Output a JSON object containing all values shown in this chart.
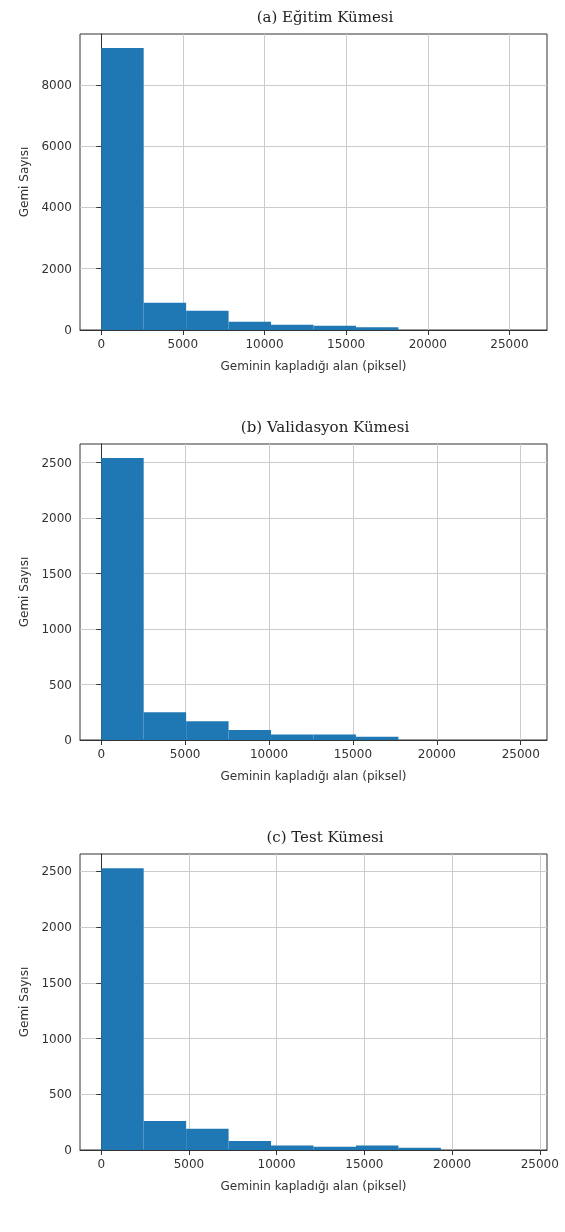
{
  "chart_data": [
    {
      "type": "histogram",
      "title": "(a) Eğitim Kümesi",
      "xlabel": "Geminin kapladığı alan (piksel)",
      "ylabel": "Gemi Sayısı",
      "color": "#1f77b4",
      "bins": [
        0,
        2600,
        5200,
        7800,
        10400,
        13000,
        15600,
        18200,
        20800,
        23400,
        26000
      ],
      "values": [
        9200,
        890,
        630,
        270,
        170,
        140,
        90,
        0,
        0,
        0
      ],
      "xlim": [
        -1300,
        27300
      ],
      "ylim": [
        0,
        9660
      ],
      "xticks": [
        0,
        5000,
        10000,
        15000,
        20000,
        25000
      ],
      "yticks": [
        0,
        2000,
        4000,
        6000,
        8000
      ],
      "grid": true
    },
    {
      "type": "histogram",
      "title": "(b) Validasyon Kümesi",
      "xlabel": "Geminin kapladığı alan (piksel)",
      "ylabel": "Gemi Sayısı",
      "color": "#1f77b4",
      "bins": [
        0,
        2530,
        5060,
        7590,
        10120,
        12650,
        15180,
        17710,
        20240,
        22770,
        25300
      ],
      "values": [
        2540,
        250,
        170,
        90,
        50,
        50,
        30,
        0,
        0,
        0
      ],
      "xlim": [
        -1265,
        26565
      ],
      "ylim": [
        0,
        2667
      ],
      "xticks": [
        0,
        5000,
        10000,
        15000,
        20000,
        25000
      ],
      "yticks": [
        0,
        500,
        1000,
        1500,
        2000,
        2500
      ],
      "grid": true
    },
    {
      "type": "histogram",
      "title": "(c) Test Kümesi",
      "xlabel": "Geminin kapladığı alan (piksel)",
      "ylabel": "Gemi Sayısı",
      "color": "#1f77b4",
      "bins": [
        0,
        2420,
        4840,
        7260,
        9680,
        12100,
        14520,
        16940,
        19360,
        21780,
        24200
      ],
      "values": [
        2530,
        260,
        190,
        80,
        40,
        30,
        40,
        20,
        0,
        0
      ],
      "xlim": [
        -1210,
        25410
      ],
      "ylim": [
        0,
        2657
      ],
      "xticks": [
        0,
        5000,
        10000,
        15000,
        20000,
        25000
      ],
      "yticks": [
        0,
        500,
        1000,
        1500,
        2000,
        2500
      ],
      "grid": true
    }
  ]
}
